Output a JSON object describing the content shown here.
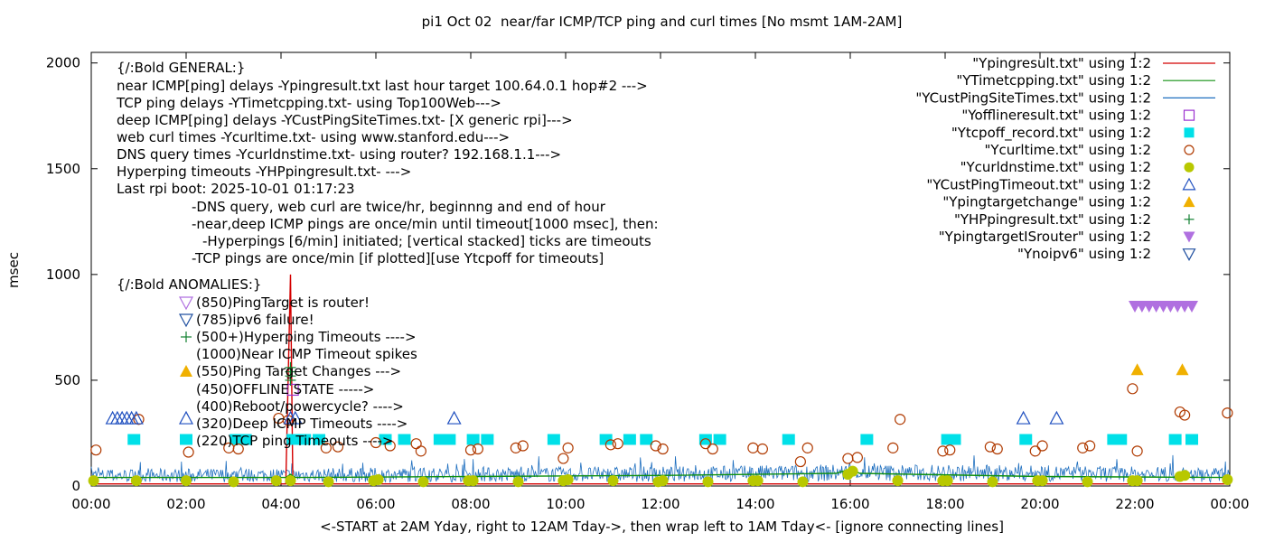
{
  "chart_data": {
    "type": "scatter",
    "title": "pi1 Oct 02  near/far ICMP/TCP ping and curl times [No msmt 1AM-2AM]",
    "xlabel": "<-START at 2AM Yday, right to 12AM Tday->, then wrap left to 1AM Tday<- [ignore connecting lines]",
    "ylabel": "msec",
    "xlim": [
      0,
      24
    ],
    "ylim": [
      0,
      2050
    ],
    "x_ticks": [
      "00:00",
      "02:00",
      "04:00",
      "06:00",
      "08:00",
      "10:00",
      "12:00",
      "14:00",
      "16:00",
      "18:00",
      "20:00",
      "22:00",
      "00:00"
    ],
    "y_ticks": [
      "0",
      "500",
      "1000",
      "1500",
      "2000"
    ],
    "grid": false,
    "legend_position": "top-right",
    "annotations": [
      "{/:Bold GENERAL:}",
      "near ICMP[ping] delays -Ypingresult.txt last hour target 100.64.0.1 hop#2 --->",
      "TCP ping delays -YTimetcpping.txt- using Top100Web--->",
      "deep ICMP[ping] delays -YCustPingSiteTimes.txt- [X generic rpi]--->",
      "web curl times -Ycurltime.txt- using www.stanford.edu--->",
      "DNS query times -Ycurldnstime.txt- using router? 192.168.1.1--->",
      "Hyperping timeouts -YHPpingresult.txt- --->",
      "Last rpi boot: 2025-10-01 01:17:23",
      "-DNS query, web curl are twice/hr, beginnng and end of hour",
      "-near,deep ICMP pings are once/min until timeout[1000 msec], then:",
      "-Hyperpings [6/min] initiated; [vertical stacked] ticks are timeouts",
      "-TCP pings are once/min [if plotted][use Ytcpoff for timeouts]",
      "{/:Bold ANOMALIES:}",
      "(850)PingTarget is router!",
      "(785)ipv6 failure!",
      "(500+)Hyperping Timeouts ---->",
      "(1000)Near ICMP Timeout spikes",
      "(550)Ping Target Changes --->",
      "(450)OFFLINE STATE ----->",
      "(400)Reboot/powercycle? ---->",
      "(320)Deep ICMP Timeouts ---->",
      "(220)TCP ping Timeouts ---->"
    ],
    "series": [
      {
        "name": "\"Ypingresult.txt\" using 1:2",
        "style": "line",
        "color": "#d40000",
        "points": [
          [
            0,
            10
          ],
          [
            4.1,
            10
          ],
          [
            4.2,
            1000
          ],
          [
            4.25,
            10
          ],
          [
            24,
            10
          ]
        ]
      },
      {
        "name": "\"YTimetcpping.txt\" using 1:2",
        "style": "line",
        "color": "#109010",
        "points": [
          [
            0,
            40
          ],
          [
            4.1,
            40
          ],
          [
            4.2,
            55
          ],
          [
            4.3,
            40
          ],
          [
            8,
            45
          ],
          [
            12,
            50
          ],
          [
            15.7,
            60
          ],
          [
            16,
            80
          ],
          [
            16.2,
            60
          ],
          [
            20,
            45
          ],
          [
            24,
            40
          ]
        ]
      },
      {
        "name": "\"YCustPingSiteTimes.txt\" using 1:2",
        "style": "noise",
        "color": "#1f6fbf",
        "points": [
          [
            0,
            70
          ],
          [
            6,
            75
          ],
          [
            12,
            80
          ],
          [
            16,
            90
          ],
          [
            20,
            85
          ],
          [
            24,
            75
          ]
        ]
      },
      {
        "name": "\"Yofflineresult.txt\" using 1:2",
        "style": "marker",
        "marker": "open-square",
        "color": "#9b30d0",
        "points": [
          [
            4.25,
            455
          ]
        ]
      },
      {
        "name": "\"Ytcpoff_record.txt\" using 1:2",
        "style": "marker",
        "marker": "filled-square",
        "color": "#00e0e8",
        "points": [
          [
            0.9,
            220
          ],
          [
            2.0,
            220
          ],
          [
            3.05,
            220
          ],
          [
            3.25,
            220
          ],
          [
            4.25,
            220
          ],
          [
            4.5,
            220
          ],
          [
            4.8,
            220
          ],
          [
            6.2,
            220
          ],
          [
            6.6,
            220
          ],
          [
            7.35,
            220
          ],
          [
            7.55,
            220
          ],
          [
            8.05,
            220
          ],
          [
            8.35,
            220
          ],
          [
            9.75,
            220
          ],
          [
            10.85,
            220
          ],
          [
            11.35,
            220
          ],
          [
            11.7,
            220
          ],
          [
            12.95,
            220
          ],
          [
            13.25,
            220
          ],
          [
            14.7,
            220
          ],
          [
            16.35,
            220
          ],
          [
            18.05,
            220
          ],
          [
            18.2,
            220
          ],
          [
            19.7,
            220
          ],
          [
            21.55,
            220
          ],
          [
            21.7,
            220
          ],
          [
            22.85,
            220
          ],
          [
            23.2,
            220
          ]
        ]
      },
      {
        "name": "\"Ycurltime.txt\" using 1:2",
        "style": "marker",
        "marker": "open-circle",
        "color": "#b03a00",
        "points": [
          [
            0.1,
            170
          ],
          [
            1.0,
            315
          ],
          [
            2.05,
            160
          ],
          [
            2.9,
            180
          ],
          [
            3.1,
            175
          ],
          [
            3.95,
            320
          ],
          [
            4.15,
            310
          ],
          [
            4.95,
            180
          ],
          [
            5.2,
            185
          ],
          [
            6.0,
            205
          ],
          [
            6.3,
            190
          ],
          [
            6.85,
            200
          ],
          [
            6.95,
            165
          ],
          [
            8.0,
            170
          ],
          [
            8.15,
            175
          ],
          [
            8.95,
            180
          ],
          [
            9.1,
            190
          ],
          [
            9.95,
            130
          ],
          [
            10.05,
            180
          ],
          [
            10.95,
            195
          ],
          [
            11.1,
            200
          ],
          [
            11.9,
            190
          ],
          [
            12.05,
            175
          ],
          [
            12.95,
            200
          ],
          [
            13.1,
            175
          ],
          [
            13.95,
            180
          ],
          [
            14.15,
            175
          ],
          [
            14.95,
            115
          ],
          [
            15.1,
            180
          ],
          [
            15.95,
            130
          ],
          [
            16.15,
            135
          ],
          [
            16.9,
            180
          ],
          [
            17.05,
            315
          ],
          [
            17.95,
            165
          ],
          [
            18.1,
            170
          ],
          [
            18.95,
            185
          ],
          [
            19.1,
            175
          ],
          [
            19.9,
            165
          ],
          [
            20.05,
            190
          ],
          [
            20.9,
            180
          ],
          [
            21.05,
            190
          ],
          [
            21.95,
            460
          ],
          [
            22.05,
            165
          ],
          [
            22.95,
            350
          ],
          [
            23.05,
            335
          ],
          [
            23.95,
            345
          ]
        ]
      },
      {
        "name": "\"Ycurldnstime.txt\" using 1:2",
        "style": "marker",
        "marker": "filled-circle",
        "color": "#b8c800",
        "points": [
          [
            0.05,
            25
          ],
          [
            0.95,
            25
          ],
          [
            2.0,
            25
          ],
          [
            3.0,
            20
          ],
          [
            3.9,
            25
          ],
          [
            4.2,
            25
          ],
          [
            5.0,
            20
          ],
          [
            5.95,
            25
          ],
          [
            6.05,
            30
          ],
          [
            7.0,
            20
          ],
          [
            7.95,
            25
          ],
          [
            8.05,
            25
          ],
          [
            9.0,
            20
          ],
          [
            9.95,
            25
          ],
          [
            10.05,
            30
          ],
          [
            11.0,
            25
          ],
          [
            11.95,
            20
          ],
          [
            12.05,
            25
          ],
          [
            13.0,
            20
          ],
          [
            13.95,
            25
          ],
          [
            14.05,
            25
          ],
          [
            15.0,
            20
          ],
          [
            15.95,
            55
          ],
          [
            16.05,
            70
          ],
          [
            17.0,
            25
          ],
          [
            17.95,
            25
          ],
          [
            18.05,
            25
          ],
          [
            19.0,
            20
          ],
          [
            19.95,
            25
          ],
          [
            20.05,
            25
          ],
          [
            21.0,
            20
          ],
          [
            21.95,
            25
          ],
          [
            22.05,
            25
          ],
          [
            22.95,
            45
          ],
          [
            23.05,
            50
          ],
          [
            23.95,
            30
          ]
        ]
      },
      {
        "name": "\"YCustPingTimeout.txt\" using 1:2",
        "style": "marker",
        "marker": "open-triangle-up",
        "color": "#2050c0",
        "points": [
          [
            0.45,
            320
          ],
          [
            0.55,
            320
          ],
          [
            0.65,
            320
          ],
          [
            0.75,
            320
          ],
          [
            0.85,
            320
          ],
          [
            0.95,
            320
          ],
          [
            2.0,
            320
          ],
          [
            4.2,
            320
          ],
          [
            4.3,
            320
          ],
          [
            7.65,
            320
          ],
          [
            19.65,
            320
          ],
          [
            20.35,
            320
          ]
        ]
      },
      {
        "name": "\"Ypingtargetchange\" using 1:2",
        "style": "marker",
        "marker": "filled-triangle-up",
        "color": "#f0b000",
        "points": [
          [
            22.05,
            550
          ],
          [
            23.0,
            550
          ]
        ]
      },
      {
        "name": "\"YHPpingresult.txt\" using 1:2",
        "style": "marker",
        "marker": "plus",
        "color": "#108030",
        "points": [
          [
            4.2,
            500
          ],
          [
            4.2,
            520
          ],
          [
            4.2,
            540
          ],
          [
            4.2,
            560
          ]
        ]
      },
      {
        "name": "\"YpingtargetISrouter\" using 1:2",
        "style": "marker",
        "marker": "filled-triangle-down",
        "color": "#b070e0",
        "points": [
          [
            22.0,
            850
          ],
          [
            22.15,
            850
          ],
          [
            22.3,
            850
          ],
          [
            22.45,
            850
          ],
          [
            22.6,
            850
          ],
          [
            22.75,
            850
          ],
          [
            22.9,
            850
          ],
          [
            23.05,
            850
          ],
          [
            23.2,
            850
          ]
        ]
      },
      {
        "name": "\"Ynoipv6\" using 1:2",
        "style": "marker",
        "marker": "open-triangle-down",
        "color": "#2050a0",
        "points": []
      }
    ]
  }
}
